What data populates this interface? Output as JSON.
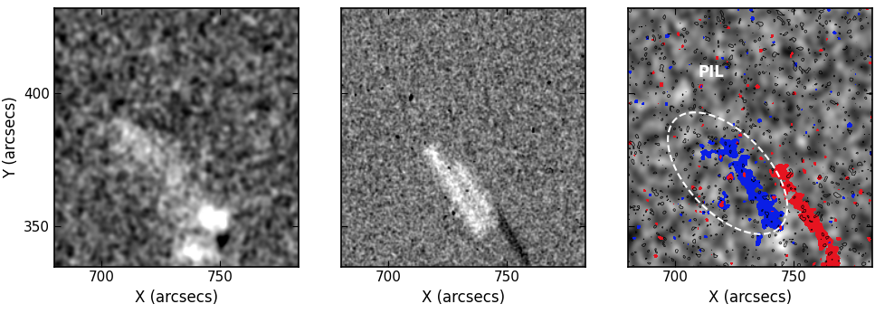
{
  "chart_data": [
    {
      "type": "image",
      "xlabel": "X (arcsecs)",
      "ylabel": "Y (arcsecs)",
      "xlim": [
        680,
        783
      ],
      "ylim": [
        335,
        432
      ],
      "xticks": [
        700,
        750
      ],
      "yticks": [
        350,
        400
      ]
    },
    {
      "type": "image",
      "xlabel": "X (arcsecs)",
      "tick_labels": "x",
      "xlim": [
        680,
        783
      ],
      "ylim": [
        335,
        432
      ],
      "xticks": [
        700,
        750
      ],
      "yticks": [
        350,
        400
      ]
    },
    {
      "type": "image",
      "xlabel": "X (arcsecs)",
      "tick_labels": "x",
      "xlim": [
        680,
        783
      ],
      "ylim": [
        335,
        432
      ],
      "xticks": [
        700,
        750
      ],
      "yticks": [
        350,
        400
      ],
      "annotations": [
        "PIL"
      ],
      "colors": [
        "#0a1ee6",
        "#e61420"
      ]
    }
  ]
}
